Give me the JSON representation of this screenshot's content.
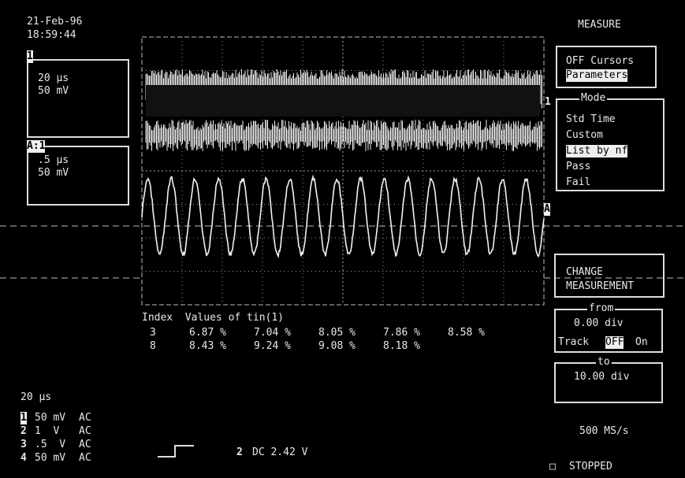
{
  "header": {
    "date": "21-Feb-96",
    "time": "18:59:44"
  },
  "traces": [
    {
      "label": "1",
      "timebase": "20 µs",
      "volts": "50 mV"
    },
    {
      "label": "A:1",
      "timebase": ".5 µs",
      "volts": "50 mV"
    }
  ],
  "markers": {
    "trace": "1",
    "zoom": "A"
  },
  "menu": {
    "title": "MEASURE",
    "cursors": "OFF Cursors",
    "parameters": "Parameters",
    "mode": {
      "title": "Mode",
      "options": [
        "Std Time",
        "Custom",
        "List by nf",
        "Pass",
        "Fail"
      ],
      "selected": 2
    },
    "change": [
      "CHANGE",
      "MEASUREMENT"
    ],
    "from": {
      "title": "from",
      "value": "0.00 div",
      "track": "Track",
      "off": "OFF",
      "on": "On"
    },
    "to": {
      "title": "to",
      "value": "10.00 div"
    },
    "sample_rate": "500 MS/s",
    "status": "STOPPED"
  },
  "table": {
    "header": "Index  Values of tin(1)",
    "rows": [
      [
        "3",
        "6.87 %",
        "7.04 %",
        "8.05 %",
        "7.86 %",
        "8.58 %"
      ],
      [
        "8",
        "8.43 %",
        "9.24 %",
        "9.08 %",
        "8.18 %"
      ]
    ]
  },
  "timebase": "20 µs",
  "channels": [
    [
      "1",
      "50 mV",
      "AC"
    ],
    [
      "2",
      "1  V",
      "AC"
    ],
    [
      "3",
      ".5  V",
      "AC"
    ],
    [
      "4",
      "50 mV",
      "AC"
    ]
  ],
  "trigger": {
    "channel": "2",
    "level": "DC 2.42 V"
  }
}
